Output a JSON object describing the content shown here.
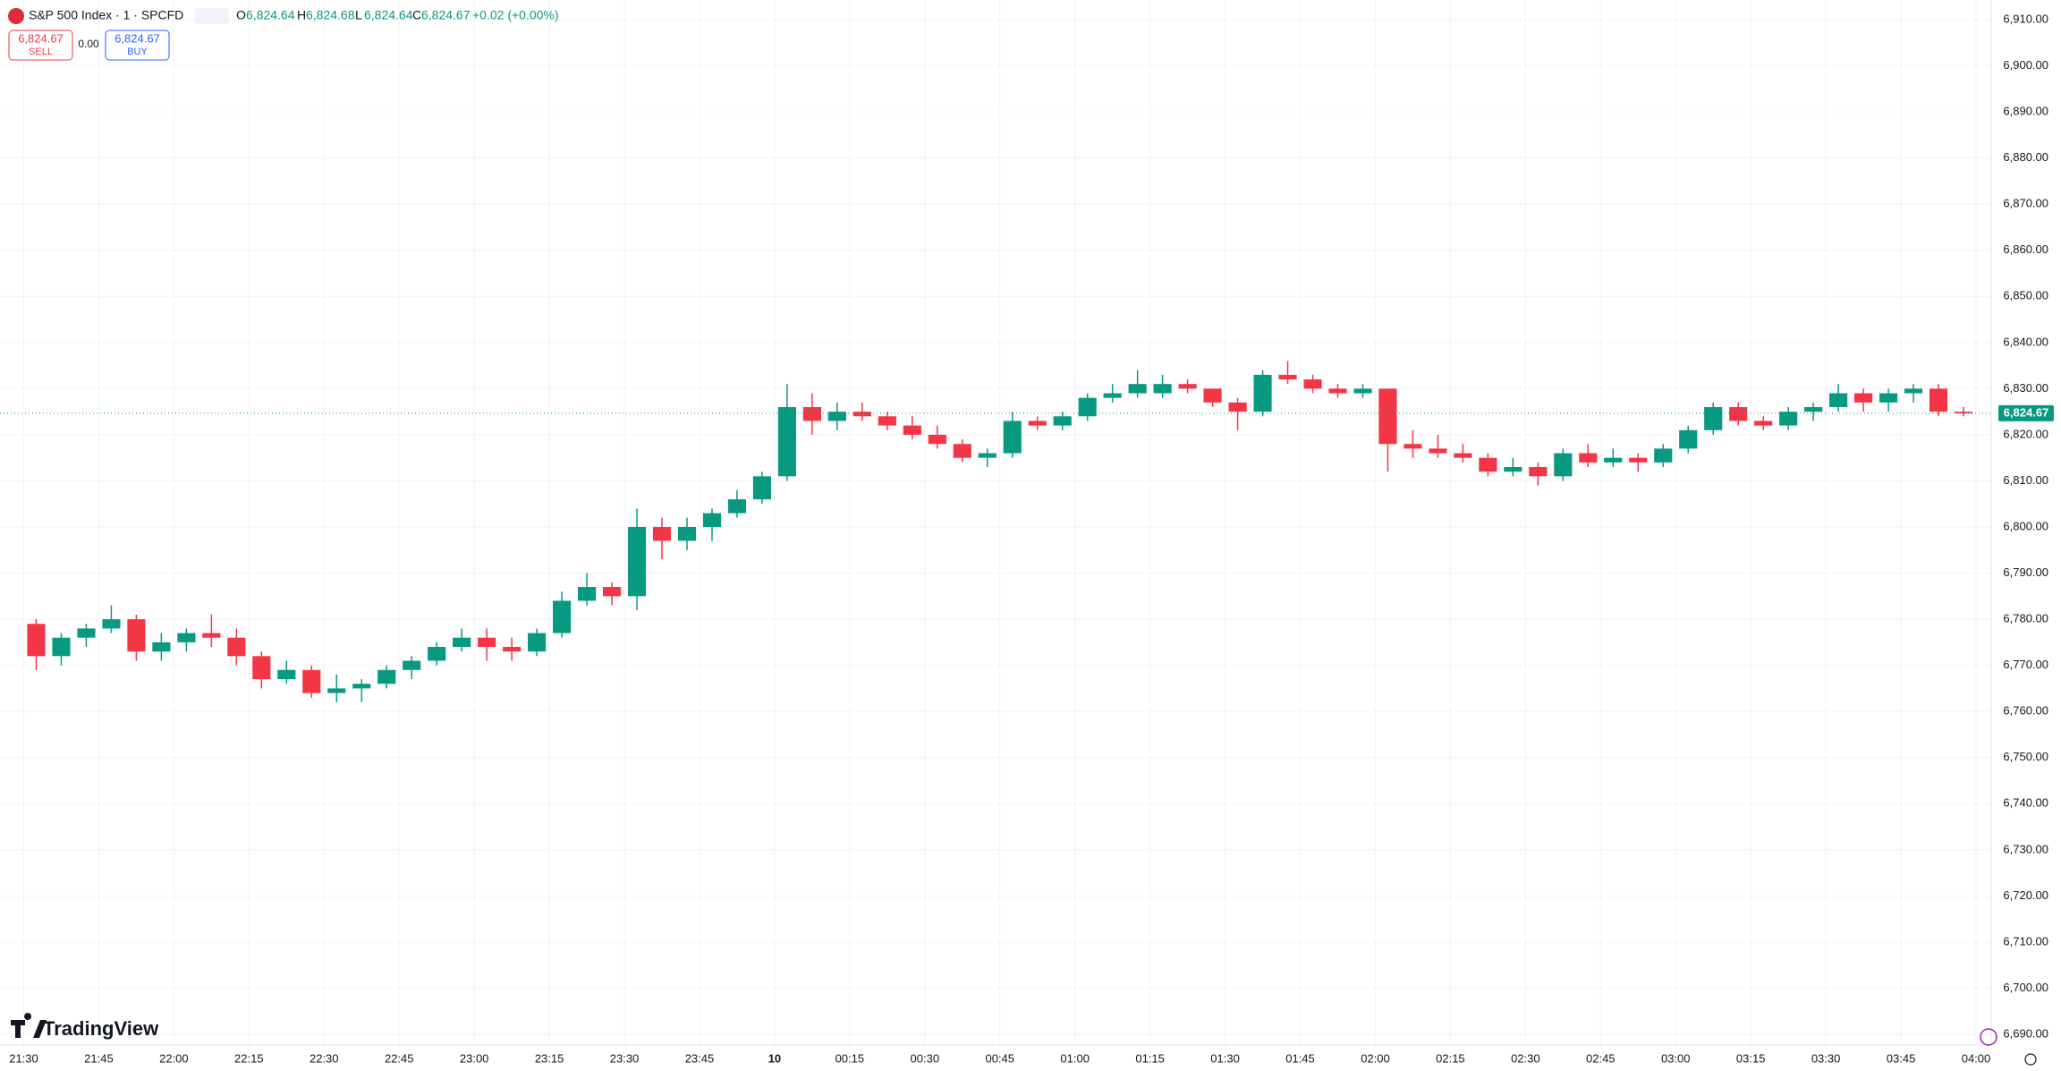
{
  "chart_data": {
    "type": "candlestick",
    "ohlc_legend": {
      "symbol": "S&P 500 Index · 1 · SPCFD",
      "open_label": "O",
      "open": "6,824.64",
      "high_label": "H",
      "high": "6,824.68",
      "low_label": "L",
      "low": "6,824.64",
      "close_label": "C",
      "close": "6,824.67",
      "change": "+0.02 (+0.00%)"
    },
    "trade_panel": {
      "sell_price": "6,824.67",
      "sell": "SELL",
      "spread": "0.00",
      "buy_price": "6,824.67",
      "buy": "BUY"
    },
    "watermark": "TradingView",
    "up_color": "#089981",
    "down_color": "#f23645",
    "grid": true,
    "x": [
      "21:30",
      "21:35",
      "21:40",
      "21:45",
      "21:50",
      "21:55",
      "22:00",
      "22:05",
      "22:10",
      "22:15",
      "22:20",
      "22:25",
      "22:30",
      "22:35",
      "22:40",
      "22:45",
      "22:50",
      "22:55",
      "23:00",
      "23:05",
      "23:10",
      "23:15",
      "23:20",
      "23:25",
      "23:30",
      "23:35",
      "23:40",
      "23:45",
      "23:50",
      "23:55",
      "00:00",
      "00:05",
      "00:10",
      "00:15",
      "00:20",
      "00:25",
      "00:30",
      "00:35",
      "00:40",
      "00:45",
      "00:50",
      "00:55",
      "01:00",
      "01:05",
      "01:10",
      "01:15",
      "01:20",
      "01:25",
      "01:30",
      "01:35",
      "01:40",
      "01:45",
      "01:50",
      "01:55",
      "02:00",
      "02:05",
      "02:10",
      "02:15",
      "02:20",
      "02:25",
      "02:30",
      "02:35",
      "02:40",
      "02:45",
      "02:50",
      "02:55",
      "03:00",
      "03:05",
      "03:10",
      "03:15",
      "03:20",
      "03:25",
      "03:30",
      "03:35",
      "03:40",
      "03:45",
      "03:50",
      "03:55"
    ],
    "open": [
      6779,
      6772,
      6776,
      6778,
      6780,
      6773,
      6775,
      6777,
      6776,
      6772,
      6767,
      6769,
      6764,
      6765,
      6766,
      6769,
      6771,
      6774,
      6776,
      6774,
      6773,
      6777,
      6784,
      6787,
      6785,
      6800,
      6797,
      6800,
      6803,
      6806,
      6811,
      6826,
      6823,
      6825,
      6824,
      6822,
      6820,
      6818,
      6815,
      6816,
      6823,
      6822,
      6824,
      6828,
      6829,
      6829,
      6831,
      6830,
      6827,
      6825,
      6833,
      6832,
      6830,
      6829,
      6830,
      6818,
      6817,
      6816,
      6815,
      6812,
      6813,
      6811,
      6816,
      6814,
      6815,
      6814,
      6817,
      6821,
      6826,
      6823,
      6822,
      6825,
      6826,
      6829,
      6827,
      6829,
      6830,
      6825
    ],
    "high": [
      6780,
      6777,
      6779,
      6783,
      6781,
      6777,
      6778,
      6781,
      6778,
      6773,
      6771,
      6770,
      6768,
      6767,
      6770,
      6772,
      6775,
      6778,
      6778,
      6776,
      6778,
      6786,
      6790,
      6788,
      6804,
      6802,
      6802,
      6804,
      6808,
      6812,
      6831,
      6829,
      6827,
      6827,
      6825,
      6824,
      6822,
      6819,
      6817,
      6825,
      6824,
      6825,
      6829,
      6831,
      6834,
      6833,
      6832,
      6830,
      6828,
      6834,
      6836,
      6833,
      6831,
      6831,
      6830,
      6821,
      6820,
      6818,
      6816,
      6815,
      6814,
      6817,
      6818,
      6817,
      6816,
      6818,
      6822,
      6827,
      6827,
      6824,
      6826,
      6827,
      6831,
      6830,
      6830,
      6831,
      6831,
      6826
    ],
    "low": [
      6769,
      6770,
      6774,
      6777,
      6771,
      6771,
      6773,
      6774,
      6770,
      6765,
      6766,
      6763,
      6762,
      6762,
      6765,
      6767,
      6770,
      6773,
      6771,
      6771,
      6772,
      6776,
      6783,
      6783,
      6782,
      6793,
      6795,
      6797,
      6802,
      6805,
      6810,
      6820,
      6821,
      6823,
      6821,
      6819,
      6817,
      6814,
      6813,
      6815,
      6821,
      6821,
      6823,
      6827,
      6828,
      6828,
      6829,
      6826,
      6821,
      6824,
      6831,
      6829,
      6828,
      6828,
      6812,
      6815,
      6815,
      6814,
      6811,
      6811,
      6809,
      6810,
      6813,
      6813,
      6812,
      6813,
      6816,
      6820,
      6822,
      6821,
      6821,
      6823,
      6825,
      6825,
      6825,
      6827,
      6824,
      6824
    ],
    "close": [
      6772,
      6776,
      6778,
      6780,
      6773,
      6775,
      6777,
      6776,
      6772,
      6767,
      6769,
      6764,
      6765,
      6766,
      6769,
      6771,
      6774,
      6776,
      6774,
      6773,
      6777,
      6784,
      6787,
      6785,
      6800,
      6797,
      6800,
      6803,
      6806,
      6811,
      6826,
      6823,
      6825,
      6824,
      6822,
      6820,
      6818,
      6815,
      6816,
      6823,
      6822,
      6824,
      6828,
      6829,
      6831,
      6831,
      6830,
      6827,
      6825,
      6833,
      6832,
      6830,
      6829,
      6830,
      6818,
      6817,
      6816,
      6815,
      6812,
      6813,
      6811,
      6816,
      6814,
      6815,
      6814,
      6817,
      6821,
      6826,
      6823,
      6822,
      6825,
      6826,
      6829,
      6827,
      6829,
      6830,
      6825,
      6824.67
    ],
    "xlim": [
      "21:30",
      "04:00"
    ],
    "xticks": [
      "21:30",
      "21:45",
      "22:00",
      "22:15",
      "22:30",
      "22:45",
      "23:00",
      "23:15",
      "23:30",
      "23:45",
      {
        "value": "00:00",
        "label": "10"
      },
      "00:15",
      "00:30",
      "00:45",
      "01:00",
      "01:15",
      "01:30",
      "01:45",
      "02:00",
      "02:15",
      "02:30",
      "02:45",
      "03:00",
      "03:15",
      "03:30",
      "03:45",
      "04:00"
    ],
    "ylim": [
      6690,
      6910
    ],
    "yticks": [
      {
        "value": 6690,
        "label": "6,690.00"
      },
      {
        "value": 6700,
        "label": "6,700.00"
      },
      {
        "value": 6710,
        "label": "6,710.00"
      },
      {
        "value": 6720,
        "label": "6,720.00"
      },
      {
        "value": 6730,
        "label": "6,730.00"
      },
      {
        "value": 6740,
        "label": "6,740.00"
      },
      {
        "value": 6750,
        "label": "6,750.00"
      },
      {
        "value": 6760,
        "label": "6,760.00"
      },
      {
        "value": 6770,
        "label": "6,770.00"
      },
      {
        "value": 6780,
        "label": "6,780.00"
      },
      {
        "value": 6790,
        "label": "6,790.00"
      },
      {
        "value": 6800,
        "label": "6,800.00"
      },
      {
        "value": 6810,
        "label": "6,810.00"
      },
      {
        "value": 6820,
        "label": "6,820.00"
      },
      {
        "value": 6830,
        "label": "6,830.00"
      },
      {
        "value": 6840,
        "label": "6,840.00"
      },
      {
        "value": 6850,
        "label": "6,850.00"
      },
      {
        "value": 6860,
        "label": "6,860.00"
      },
      {
        "value": 6870,
        "label": "6,870.00"
      },
      {
        "value": 6880,
        "label": "6,880.00"
      },
      {
        "value": 6890,
        "label": "6,890.00"
      },
      {
        "value": 6900,
        "label": "6,900.00"
      },
      {
        "value": 6910,
        "label": "6,910.00"
      }
    ],
    "last_price": {
      "value": 6824.67,
      "label": "6,824.67"
    }
  }
}
